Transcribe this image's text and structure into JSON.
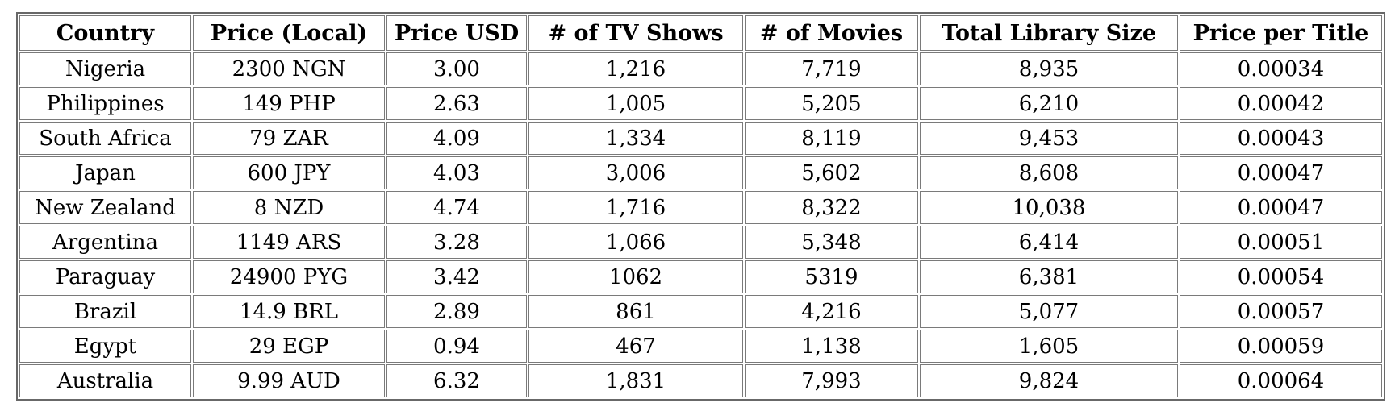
{
  "chart_data": {
    "type": "table",
    "title": "",
    "columns": [
      "Country",
      "Price (Local)",
      "Price USD",
      "# of TV Shows",
      "# of Movies",
      "Total Library Size",
      "Price per Title"
    ],
    "rows": [
      [
        "Nigeria",
        "2300 NGN",
        "3.00",
        "1,216",
        "7,719",
        "8,935",
        "0.00034"
      ],
      [
        "Philippines",
        "149 PHP",
        "2.63",
        "1,005",
        "5,205",
        "6,210",
        "0.00042"
      ],
      [
        "South Africa",
        "79 ZAR",
        "4.09",
        "1,334",
        "8,119",
        "9,453",
        "0.00043"
      ],
      [
        "Japan",
        "600 JPY",
        "4.03",
        "3,006",
        "5,602",
        "8,608",
        "0.00047"
      ],
      [
        "New Zealand",
        "8 NZD",
        "4.74",
        "1,716",
        "8,322",
        "10,038",
        "0.00047"
      ],
      [
        "Argentina",
        "1149 ARS",
        "3.28",
        "1,066",
        "5,348",
        "6,414",
        "0.00051"
      ],
      [
        "Paraguay",
        "24900 PYG",
        "3.42",
        "1062",
        "5319",
        "6,381",
        "0.00054"
      ],
      [
        "Brazil",
        "14.9 BRL",
        "2.89",
        "861",
        "4,216",
        "5,077",
        "0.00057"
      ],
      [
        "Egypt",
        "29 EGP",
        "0.94",
        "467",
        "1,138",
        "1,605",
        "0.00059"
      ],
      [
        "Australia",
        "9.99 AUD",
        "6.32",
        "1,831",
        "7,993",
        "9,824",
        "0.00064"
      ]
    ],
    "layout_hints": {
      "sorted_by": "Price per Title ascending",
      "grid": true,
      "text_color": "#000000",
      "border_color": "#7a7a7a",
      "background_color": "#ffffff"
    }
  }
}
